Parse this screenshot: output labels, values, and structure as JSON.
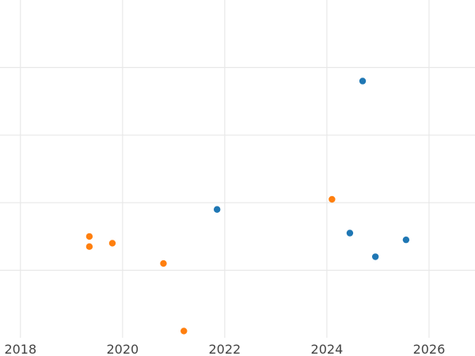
{
  "chart_data": {
    "type": "scatter",
    "title": "",
    "xlabel": "",
    "ylabel": "",
    "xlim": [
      2017.6,
      2026.9
    ],
    "ylim": [
      0,
      5
    ],
    "x_ticks": [
      2018,
      2020,
      2022,
      2024,
      2026
    ],
    "x_tick_labels": [
      "2018",
      "2020",
      "2022",
      "2024",
      "2026"
    ],
    "y_gridlines": [
      1,
      2,
      3,
      4
    ],
    "grid": true,
    "legend": "none",
    "series": [
      {
        "color": "#1f77b4",
        "points": [
          {
            "x": 2021.85,
            "y": 1.9
          },
          {
            "x": 2024.45,
            "y": 1.55
          },
          {
            "x": 2024.7,
            "y": 3.8
          },
          {
            "x": 2024.95,
            "y": 1.2
          },
          {
            "x": 2025.55,
            "y": 1.45
          }
        ]
      },
      {
        "color": "#ff7f0e",
        "points": [
          {
            "x": 2019.35,
            "y": 1.5
          },
          {
            "x": 2019.35,
            "y": 1.35
          },
          {
            "x": 2019.8,
            "y": 1.4
          },
          {
            "x": 2020.8,
            "y": 1.1
          },
          {
            "x": 2021.2,
            "y": 0.1
          },
          {
            "x": 2024.1,
            "y": 2.05
          }
        ]
      }
    ]
  }
}
